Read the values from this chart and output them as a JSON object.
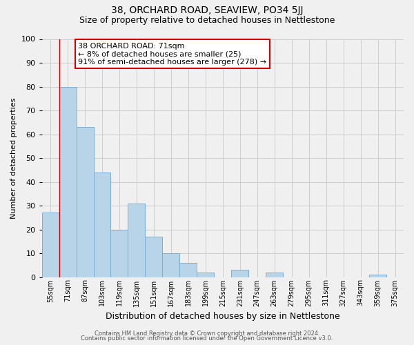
{
  "title1": "38, ORCHARD ROAD, SEAVIEW, PO34 5JJ",
  "title2": "Size of property relative to detached houses in Nettlestone",
  "xlabel": "Distribution of detached houses by size in Nettlestone",
  "ylabel": "Number of detached properties",
  "footer1": "Contains HM Land Registry data © Crown copyright and database right 2024.",
  "footer2": "Contains public sector information licensed under the Open Government Licence v3.0.",
  "bin_labels": [
    "55sqm",
    "71sqm",
    "87sqm",
    "103sqm",
    "119sqm",
    "135sqm",
    "151sqm",
    "167sqm",
    "183sqm",
    "199sqm",
    "215sqm",
    "231sqm",
    "247sqm",
    "263sqm",
    "279sqm",
    "295sqm",
    "311sqm",
    "327sqm",
    "343sqm",
    "359sqm",
    "375sqm"
  ],
  "bar_values": [
    27,
    80,
    63,
    44,
    20,
    31,
    17,
    10,
    6,
    2,
    0,
    3,
    0,
    2,
    0,
    0,
    0,
    0,
    0,
    1,
    0
  ],
  "bar_color": "#b8d4e8",
  "bar_edge_color": "#7bafd4",
  "marker_line_index": 1,
  "annotation_box_text": "38 ORCHARD ROAD: 71sqm\n← 8% of detached houses are smaller (25)\n91% of semi-detached houses are larger (278) →",
  "marker_line_color": "#cc0000",
  "ylim": [
    0,
    100
  ],
  "yticks": [
    0,
    10,
    20,
    30,
    40,
    50,
    60,
    70,
    80,
    90,
    100
  ],
  "grid_color": "#cccccc",
  "background_color": "#f0f0f0",
  "title_fontsize": 10,
  "subtitle_fontsize": 9,
  "xlabel_fontsize": 9,
  "ylabel_fontsize": 8,
  "tick_fontsize": 7,
  "footer_fontsize": 6,
  "annot_fontsize": 8
}
